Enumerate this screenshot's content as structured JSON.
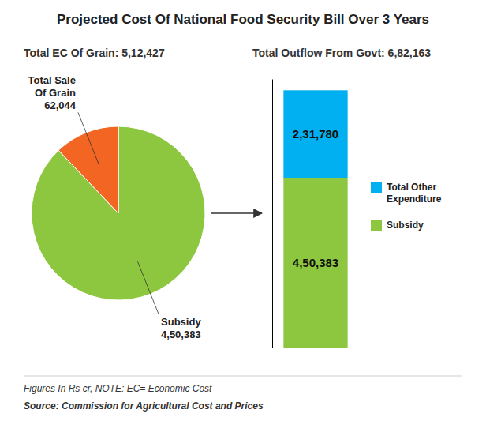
{
  "chart_data": [
    {
      "type": "pie",
      "title": "Projected Cost Of National Food Security Bill Over 3 Years",
      "subtitle": "Total EC Of Grain: 5,12,427",
      "categories": [
        "Subsidy",
        "Total Sale\nOf Grain"
      ],
      "values": [
        450383,
        62044
      ],
      "value_labels": [
        "4,50,383",
        "62,044"
      ],
      "colors": [
        "#8dc63f",
        "#f26522"
      ],
      "data_labels": true,
      "annotations": [
        "Figures In Rs cr, NOTE: EC= Economic Cost",
        "Source: Commission for Agricultural Cost and Prices"
      ]
    },
    {
      "type": "bar",
      "subtitle": "Total Outflow From Govt: 6,82,163",
      "categories": [
        null
      ],
      "series": [
        {
          "name": "Subsidy",
          "color": "#8dc63f",
          "values": [
            450383
          ],
          "value_labels": [
            "4,50,383"
          ]
        },
        {
          "name": "Total Other\nExpenditure",
          "color": "#00b0f0",
          "values": [
            231780
          ],
          "value_labels": [
            "2,31,780"
          ]
        }
      ],
      "stacked": true,
      "data_labels": true,
      "ylim": [
        0,
        712163
      ],
      "tick_labels": false,
      "legend": "right"
    }
  ]
}
